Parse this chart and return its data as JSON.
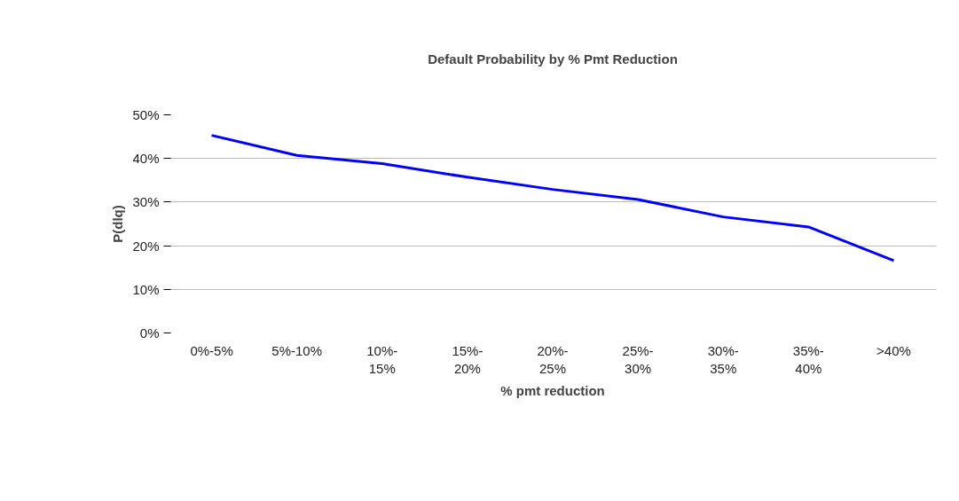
{
  "chart_data": {
    "type": "line",
    "title": "Default Probability by % Pmt Reduction",
    "xlabel": "% pmt reduction",
    "ylabel": "P(dlq)",
    "categories": [
      "0%-5%",
      "5%-10%",
      "10%-15%",
      "15%-20%",
      "20%-25%",
      "25%-30%",
      "30%-35%",
      "35%-40%",
      ">40%"
    ],
    "series": [
      {
        "color": "#0000ff",
        "values": [
          45.3,
          40.7,
          38.8,
          35.7,
          32.9,
          30.6,
          26.6,
          24.3,
          16.6
        ]
      }
    ],
    "ylim": [
      0,
      50
    ],
    "yticks": [
      {
        "value": 0,
        "label": "0%"
      },
      {
        "value": 10,
        "label": "10%"
      },
      {
        "value": 20,
        "label": "20%"
      },
      {
        "value": 30,
        "label": "30%"
      },
      {
        "value": 40,
        "label": "40%"
      },
      {
        "value": 50,
        "label": "50%"
      }
    ],
    "grid": "y",
    "marker": "none",
    "line_style": "solid"
  }
}
